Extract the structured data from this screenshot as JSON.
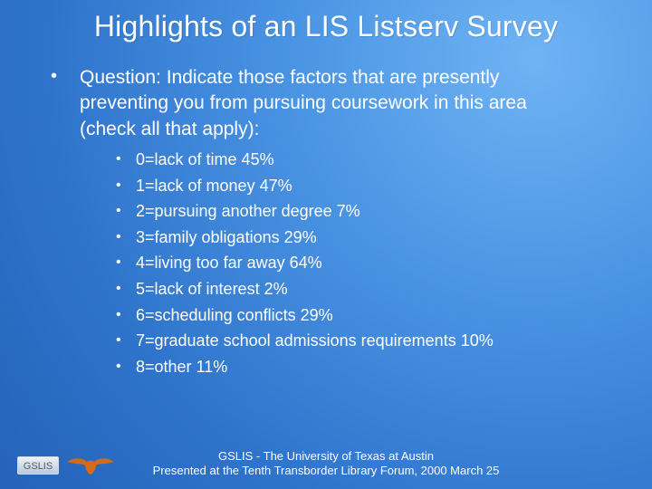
{
  "slide": {
    "title": "Highlights of an LIS Listserv Survey",
    "question_bullet": "•",
    "question": "Question: Indicate those factors that are presently\npreventing you from pursuing coursework in this area\n(check all that apply):",
    "factor_bullet": "•",
    "factors": [
      "0=lack of time 45%",
      "1=lack of money 47%",
      "2=pursuing another degree 7%",
      "3=family obligations 29%",
      "4=living too far away 64%",
      "5=lack of interest 2%",
      "6=scheduling conflicts 29%",
      "7=graduate school admissions requirements 10%",
      "8=other 11%"
    ],
    "footer": {
      "logo_text": "GSLIS",
      "logo_icon": "longhorn-icon",
      "line1": "GSLIS - The University of Texas at Austin",
      "line2": "Presented at the Tenth Transborder Library Forum, 2000 March 25"
    },
    "colors": {
      "background_dark": "#2463b8",
      "background_light": "#6fb3f3",
      "text": "#ffffff",
      "logo_fill": "#bdc7d8",
      "longhorn_fill": "#d56b16"
    }
  }
}
